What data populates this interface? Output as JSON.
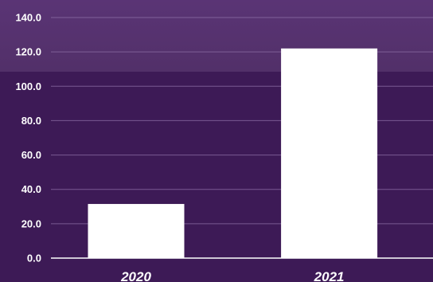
{
  "colors": {
    "background": "#3d1a56",
    "band": "#5a3475",
    "bar": "#ffffff",
    "text": "#ffffff"
  },
  "chart_data": {
    "type": "bar",
    "categories": [
      "2020",
      "2021"
    ],
    "values": [
      31.5,
      122.0
    ],
    "ylim": [
      0,
      140
    ],
    "yticks": [
      "0.0",
      "20.0",
      "40.0",
      "60.0",
      "80.0",
      "100.0",
      "120.0",
      "140.0"
    ],
    "grid": true,
    "legend": "none"
  }
}
